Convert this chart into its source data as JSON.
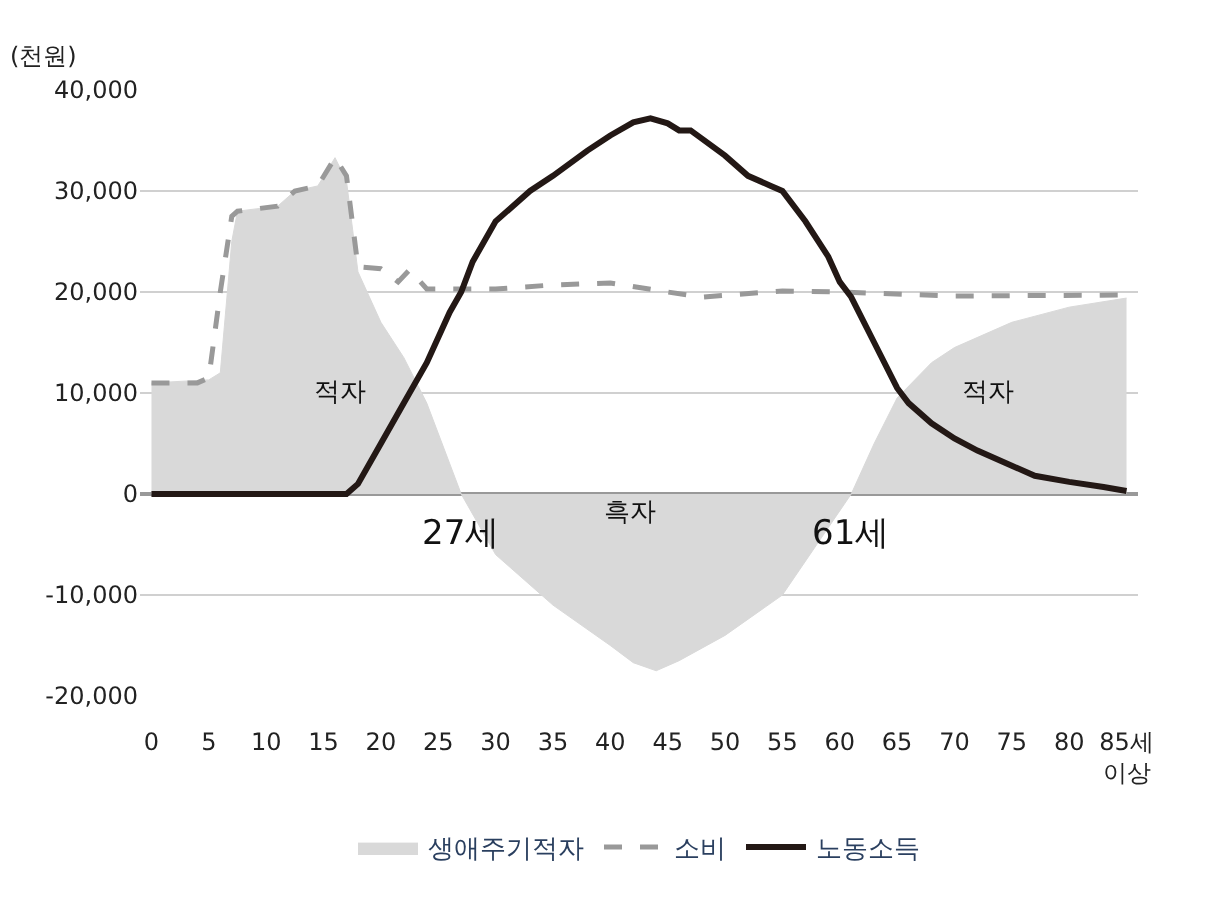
{
  "chart_data": {
    "type": "line",
    "ylabel": "(천원)",
    "series": [
      {
        "name": "생애주기적자",
        "type": "area",
        "color": "#d9d9d9",
        "x": [
          0,
          5,
          6,
          7,
          7.5,
          11,
          12.5,
          14.5,
          16,
          17,
          18,
          20,
          22,
          24,
          26,
          27,
          30,
          35,
          40,
          42,
          44,
          46,
          50,
          55,
          58,
          61,
          63,
          65,
          68,
          70,
          75,
          80,
          85
        ],
        "values": [
          11000,
          11300,
          12000,
          25000,
          28000,
          28500,
          30000,
          30500,
          33300,
          31000,
          22000,
          17000,
          13500,
          9000,
          3000,
          0,
          -6000,
          -11000,
          -15000,
          -16700,
          -17500,
          -16500,
          -14000,
          -10000,
          -5000,
          0,
          5000,
          9500,
          13000,
          14500,
          17000,
          18500,
          19400
        ]
      },
      {
        "name": "소비",
        "color": "#999999",
        "line_style": "dashed",
        "x": [
          0,
          4,
          5,
          6,
          7,
          7.5,
          11,
          12.5,
          14.5,
          16,
          17,
          18,
          20,
          21.5,
          22.5,
          24,
          30,
          35,
          40,
          45,
          48,
          55,
          60,
          70,
          85
        ],
        "values": [
          11000,
          11000,
          11500,
          20000,
          27500,
          28000,
          28500,
          30000,
          30500,
          33300,
          31500,
          22500,
          22300,
          21000,
          22200,
          20300,
          20300,
          20700,
          20900,
          20000,
          19500,
          20100,
          20000,
          19600,
          19700
        ]
      },
      {
        "name": "노동소득",
        "color": "#231815",
        "line_style": "solid",
        "x": [
          0,
          17,
          18,
          20,
          22,
          24,
          26,
          27,
          28,
          30,
          33,
          35,
          38,
          40,
          42,
          43.5,
          45,
          46,
          47,
          50,
          52,
          54,
          55,
          57,
          59,
          60,
          61,
          63,
          65,
          66,
          68,
          70,
          72,
          75,
          77,
          80,
          83,
          85
        ],
        "values": [
          0,
          0,
          1000,
          5000,
          9000,
          13000,
          18000,
          20000,
          23000,
          27000,
          30000,
          31500,
          34000,
          35500,
          36800,
          37200,
          36700,
          36000,
          36000,
          33500,
          31500,
          30500,
          30000,
          27000,
          23500,
          21000,
          19500,
          15000,
          10500,
          9000,
          7000,
          5500,
          4300,
          2800,
          1800,
          1200,
          700,
          300
        ]
      }
    ],
    "xlim": [
      -1,
      86
    ],
    "xticks": [
      0,
      5,
      10,
      15,
      20,
      25,
      30,
      35,
      40,
      45,
      50,
      55,
      60,
      65,
      70,
      75,
      80,
      {
        "value": 85,
        "label": "85세\n이상"
      }
    ],
    "ylim": [
      -20000,
      40000
    ],
    "yticks": [
      {
        "value": -20000,
        "label": "-20,000"
      },
      {
        "value": -10000,
        "label": "-10,000"
      },
      0,
      {
        "value": 10000,
        "label": "10,000"
      },
      {
        "value": 20000,
        "label": "20,000"
      },
      {
        "value": 30000,
        "label": "30,000"
      },
      {
        "value": 40000,
        "label": "40,000"
      }
    ],
    "grid": "y",
    "legend": "bottom",
    "annotations": [
      {
        "text": "27세",
        "x": 27,
        "y": 0
      },
      {
        "text": "61세",
        "x": 61,
        "y": 0
      },
      "적자",
      "흑자",
      "적자"
    ]
  }
}
